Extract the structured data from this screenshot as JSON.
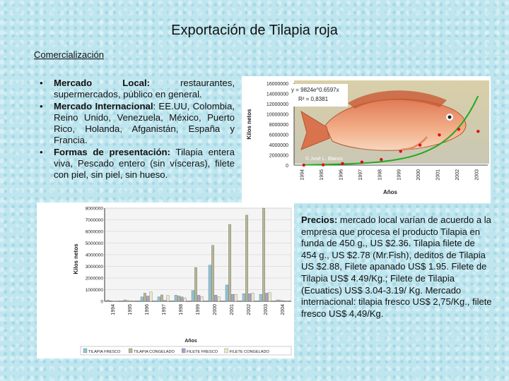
{
  "title": "Exportación de Tilapia roja",
  "subtitle": "Comercialización",
  "bullets": [
    {
      "label": "Mercado Local:",
      "text": " restaurantes, supermercados, público en general."
    },
    {
      "label": "Mercado Internacional",
      "text": ": EE.UU, Colombia, Reino Unido, Venezuela, México, Puerto Rico, Holanda, Afganistán, España y Francia."
    },
    {
      "label": "Formas de presentación:",
      "text": " Tilapia entera viva, Pescado entero (sin vísceras), filete con piel, sin piel, sin hueso."
    }
  ],
  "bullet_glyph": "•",
  "prices": {
    "label": "Precios:",
    "text": " mercado local varían de acuerdo a la empresa que procesa el producto Tilapia en funda de 450 g., US $2.36. Tilapia filete de 454 g., US $2.78 (Mr.Fish), deditos de Tilapia US $2.88, Filete apanado US$ 1.95. Filete de Tilapia US$ 4.49/Kg.; Filete de Tilapia (Ecuatics) US$ 3.04-3.19/ Kg. Mercado internacional: tilapia fresco US$ 2,75/Kg., filete fresco US$ 4,49/Kg."
  },
  "chart_data": [
    {
      "type": "scatter",
      "xlabel": "Años",
      "ylabel": "Kilos netos",
      "x": [
        "1994",
        "1995",
        "1996",
        "1997",
        "1998",
        "1999",
        "2000",
        "2001",
        "2002",
        "2003"
      ],
      "y": [
        0,
        50000,
        300000,
        600000,
        1100000,
        2700000,
        3900000,
        5900000,
        7000000,
        6600000
      ],
      "ylim": [
        0,
        16000000
      ],
      "yticks": [
        "16000000",
        "14000000",
        "12000000",
        "10000000",
        "8000000",
        "6000000",
        "4000000",
        "2000000",
        "0"
      ],
      "trend": {
        "equation": "y = 9824e^0.6597x",
        "r2": "R² = 0,8381"
      },
      "credit": "© José L. Blanco",
      "colors": {
        "points": "#dd1111",
        "trend": "#22aa22"
      }
    },
    {
      "type": "bar",
      "xlabel": "Años",
      "ylabel": "Kilos netos",
      "categories": [
        "1994",
        "1995",
        "1996",
        "1997",
        "1998",
        "1999",
        "2000",
        "2001",
        "2002",
        "2003",
        "2004"
      ],
      "ylim": [
        0,
        8000000
      ],
      "yticks": [
        "8000000",
        "7000000",
        "6000000",
        "5000000",
        "4000000",
        "3000000",
        "2000000",
        "1000000",
        "0"
      ],
      "series": [
        {
          "name": "TILAPIA FRESCO",
          "color": "#8ec5d6",
          "values": [
            100000,
            120000,
            380000,
            380000,
            520000,
            920000,
            3100000,
            1400000,
            650000,
            600000,
            120000
          ]
        },
        {
          "name": "TILAPIA CONGELADO",
          "color": "#b8b898",
          "values": [
            50000,
            60000,
            700000,
            550000,
            460000,
            2900000,
            4800000,
            6600000,
            7400000,
            8000000,
            80000
          ]
        },
        {
          "name": "FILETE FRESCO",
          "color": "#a9a4cc",
          "values": [
            20000,
            30000,
            450000,
            80000,
            380000,
            520000,
            530000,
            600000,
            650000,
            700000,
            50000
          ]
        },
        {
          "name": "FILETE CONGELADO",
          "color": "#e8e8c8",
          "values": [
            30000,
            40000,
            800000,
            500000,
            300000,
            400000,
            400000,
            600000,
            700000,
            750000,
            40000
          ]
        }
      ]
    }
  ]
}
